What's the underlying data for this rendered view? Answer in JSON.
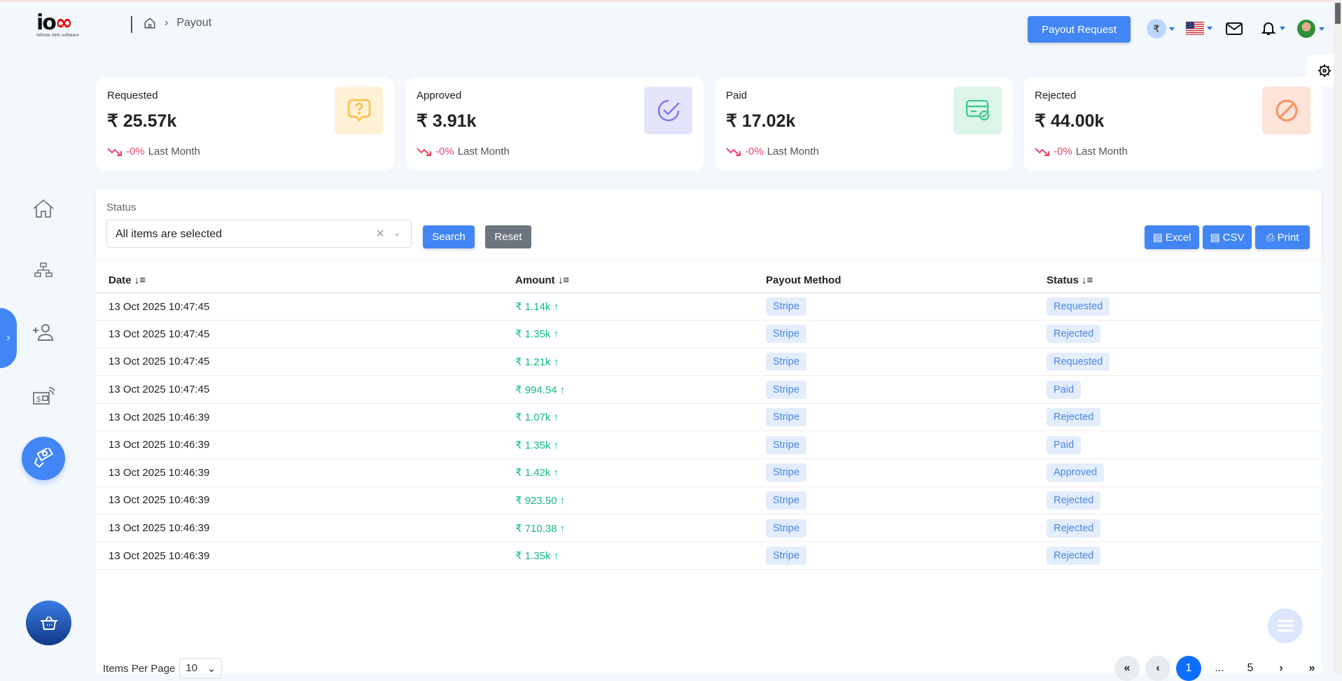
{
  "header": {
    "logo_text": "iooo",
    "logo_tagline": "infinite mlm software",
    "breadcrumb": "Payout",
    "payout_request": "Payout Request",
    "currency_symbol": "₹"
  },
  "cards": [
    {
      "label": "Requested",
      "value": "₹ 25.57k",
      "change": "-0%",
      "period": "Last Month",
      "icon": "question-bubble-icon",
      "color": "#fbbf3c",
      "bg": "#fff1d6"
    },
    {
      "label": "Approved",
      "value": "₹ 3.91k",
      "change": "-0%",
      "period": "Last Month",
      "icon": "check-circle-icon",
      "color": "#7b7bf0",
      "bg": "#e4e4fb"
    },
    {
      "label": "Paid",
      "value": "₹ 17.02k",
      "change": "-0%",
      "period": "Last Month",
      "icon": "card-check-icon",
      "color": "#3cc985",
      "bg": "#dcf5e8"
    },
    {
      "label": "Rejected",
      "value": "₹ 44.00k",
      "change": "-0%",
      "period": "Last Month",
      "icon": "ban-icon",
      "color": "#f7915e",
      "bg": "#fde3d8"
    }
  ],
  "filter": {
    "label": "Status",
    "value": "All items are selected",
    "search": "Search",
    "reset": "Reset",
    "excel": "Excel",
    "csv": "CSV",
    "print": "Print"
  },
  "table": {
    "columns": [
      "Date",
      "Amount",
      "Payout Method",
      "Status"
    ],
    "rows": [
      [
        "13 Oct 2025 10:47:45",
        "₹ 1.14k",
        "Stripe",
        "Requested"
      ],
      [
        "13 Oct 2025 10:47:45",
        "₹ 1.35k",
        "Stripe",
        "Rejected"
      ],
      [
        "13 Oct 2025 10:47:45",
        "₹ 1.21k",
        "Stripe",
        "Requested"
      ],
      [
        "13 Oct 2025 10:47:45",
        "₹ 994.54",
        "Stripe",
        "Paid"
      ],
      [
        "13 Oct 2025 10:46:39",
        "₹ 1.07k",
        "Stripe",
        "Rejected"
      ],
      [
        "13 Oct 2025 10:46:39",
        "₹ 1.35k",
        "Stripe",
        "Paid"
      ],
      [
        "13 Oct 2025 10:46:39",
        "₹ 1.42k",
        "Stripe",
        "Approved"
      ],
      [
        "13 Oct 2025 10:46:39",
        "₹ 923.50",
        "Stripe",
        "Rejected"
      ],
      [
        "13 Oct 2025 10:46:39",
        "₹ 710.38",
        "Stripe",
        "Rejected"
      ],
      [
        "13 Oct 2025 10:46:39",
        "₹ 1.35k",
        "Stripe",
        "Rejected"
      ]
    ]
  },
  "footer": {
    "items_per_page_label": "Items Per Page",
    "items_per_page": "10",
    "pages": [
      "«",
      "‹",
      "1",
      "...",
      "5",
      "›",
      "»"
    ],
    "current_page": "1"
  }
}
